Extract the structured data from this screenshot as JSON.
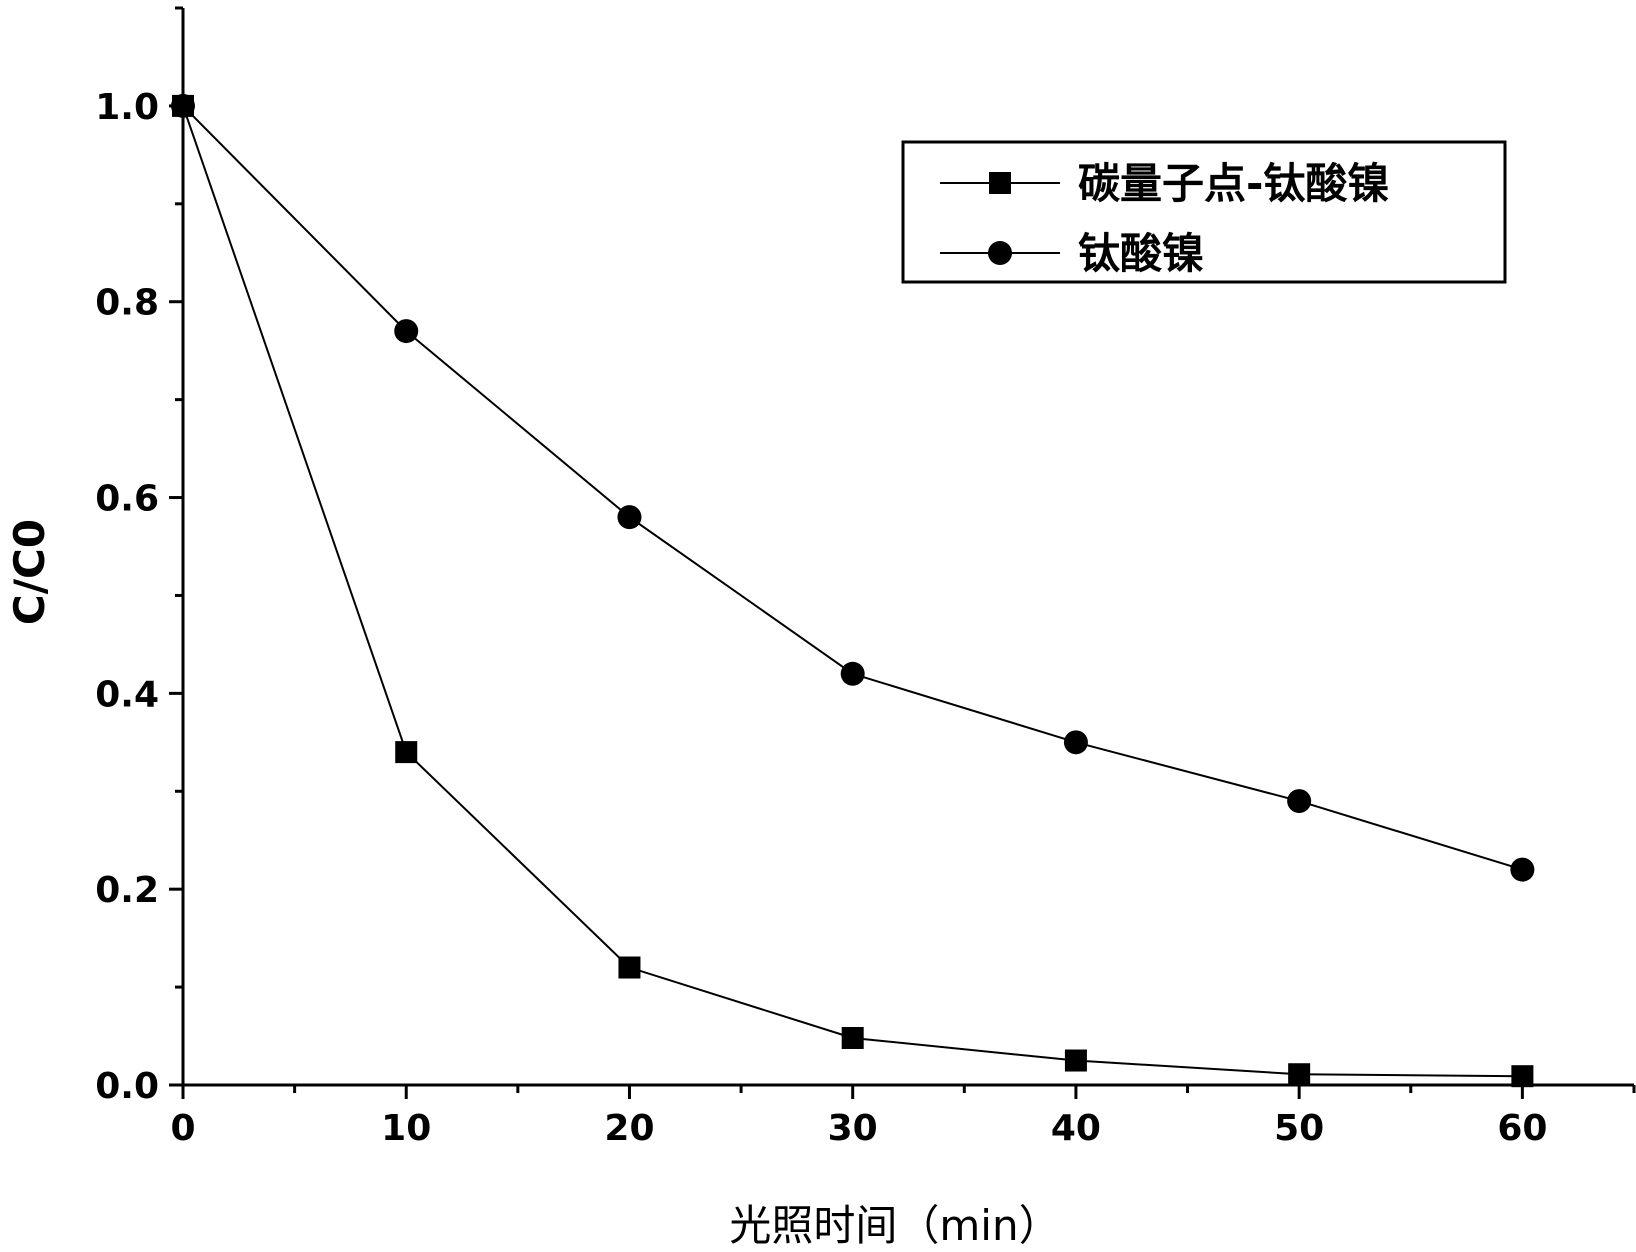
{
  "chart_data": {
    "type": "line",
    "x": [
      0,
      10,
      20,
      30,
      40,
      50,
      60
    ],
    "series": [
      {
        "name": "碳量子点-钛酸镍",
        "marker": "square",
        "values": [
          1.0,
          0.34,
          0.12,
          0.048,
          0.025,
          0.011,
          0.009
        ]
      },
      {
        "name": "钛酸镍",
        "marker": "circle",
        "values": [
          1.0,
          0.77,
          0.58,
          0.42,
          0.35,
          0.29,
          0.22
        ]
      }
    ],
    "xlabel": "光照时间（min）",
    "ylabel": "C/C0",
    "xlim": [
      0,
      65
    ],
    "ylim": [
      0,
      1.1
    ],
    "x_ticks": [
      0,
      10,
      20,
      30,
      40,
      50,
      60
    ],
    "x_tick_labels": [
      "0",
      "10",
      "20",
      "30",
      "40",
      "50",
      "60"
    ],
    "y_ticks": [
      0,
      0.2,
      0.4,
      0.6,
      0.8,
      1.0
    ],
    "y_tick_labels": [
      "0.0",
      "0.2",
      "0.4",
      "0.6",
      "0.8",
      "1.0"
    ],
    "grid": false,
    "legend_position": "top-right",
    "colors": {
      "line": "#000000",
      "background": "#ffffff"
    }
  }
}
